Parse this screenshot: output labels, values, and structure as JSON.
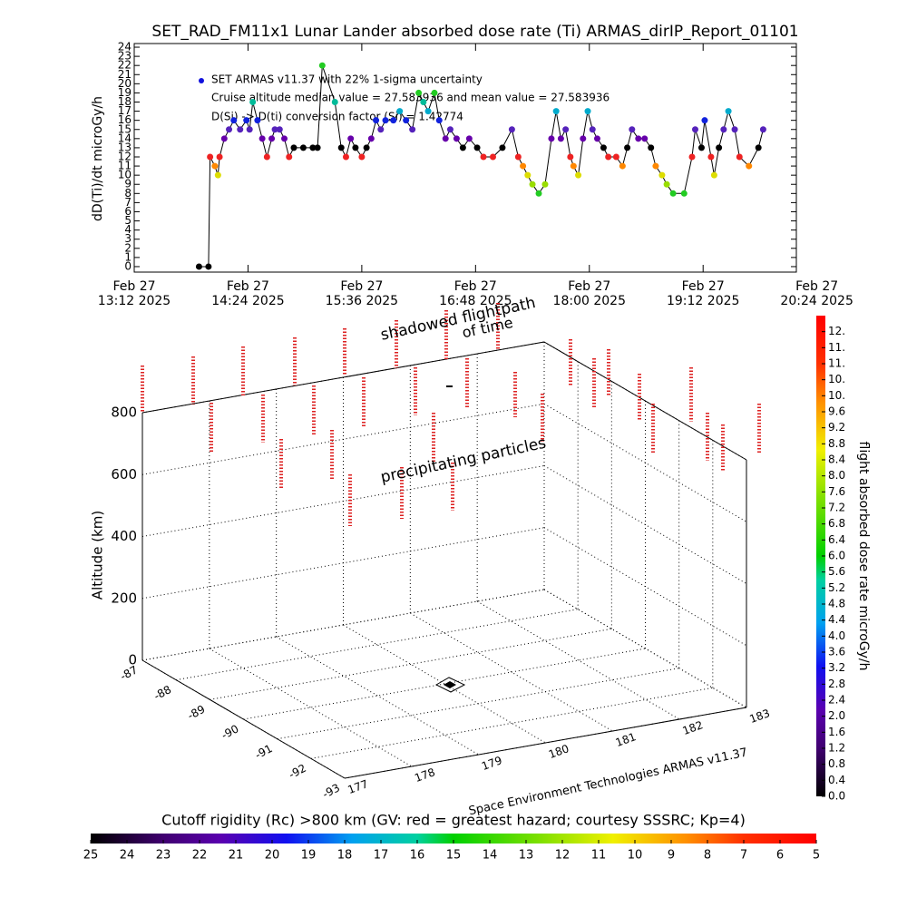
{
  "chart_data": [
    {
      "type": "line",
      "title": "SET_RAD_FM11x1  Lunar Lander absorbed dose rate (Ti) ARMAS_dirIP_Report_01101",
      "ylabel": "dD(Ti)/dt microGy/h",
      "annotations": [
        "Cruise altitude median value = 27.583936 and mean value = 27.583936",
        "D(Si) -> D(ti) conversion factor (Si) = 1.42774"
      ],
      "legend_color": "#1111dd",
      "xlim": [
        "2025-02-27T13:12",
        "2025-02-27T20:11"
      ],
      "xticks": [
        {
          "value": "2025-02-27T13:12",
          "label": "Feb 27\n13:12 2025"
        },
        {
          "value": "2025-02-27T14:24",
          "label": "Feb 27\n14:24 2025"
        },
        {
          "value": "2025-02-27T15:36",
          "label": "Feb 27\n15:36 2025"
        },
        {
          "value": "2025-02-27T16:48",
          "label": "Feb 27\n16:48 2025"
        },
        {
          "value": "2025-02-27T18:00",
          "label": "Feb 27\n18:00 2025"
        },
        {
          "value": "2025-02-27T19:12",
          "label": "Feb 27\n19:12 2025"
        },
        {
          "value": "2025-02-27T20:24",
          "label": "Feb 27\n20:24 2025"
        }
      ],
      "ylim": [
        -0.6,
        24.4
      ],
      "yticks": [
        0,
        1,
        2,
        3,
        4,
        5,
        6,
        7,
        8,
        9,
        10,
        11,
        12,
        13,
        14,
        15,
        16,
        17,
        18,
        19,
        20,
        21,
        22,
        23,
        24
      ],
      "x": [
        "2025-02-27T13:53",
        "2025-02-27T13:59",
        "2025-02-27T14:00",
        "2025-02-27T14:03",
        "2025-02-27T14:05",
        "2025-02-27T14:06",
        "2025-02-27T14:09",
        "2025-02-27T14:12",
        "2025-02-27T14:15",
        "2025-02-27T14:19",
        "2025-02-27T14:23",
        "2025-02-27T14:25",
        "2025-02-27T14:27",
        "2025-02-27T14:30",
        "2025-02-27T14:33",
        "2025-02-27T14:36",
        "2025-02-27T14:39",
        "2025-02-27T14:41",
        "2025-02-27T14:44",
        "2025-02-27T14:47",
        "2025-02-27T14:50",
        "2025-02-27T14:53",
        "2025-02-27T14:59",
        "2025-02-27T15:05",
        "2025-02-27T15:08",
        "2025-02-27T15:11",
        "2025-02-27T15:19",
        "2025-02-27T15:23",
        "2025-02-27T15:26",
        "2025-02-27T15:29",
        "2025-02-27T15:32",
        "2025-02-27T15:36",
        "2025-02-27T15:39",
        "2025-02-27T15:42",
        "2025-02-27T15:45",
        "2025-02-27T15:48",
        "2025-02-27T15:51",
        "2025-02-27T15:56",
        "2025-02-27T16:00",
        "2025-02-27T16:04",
        "2025-02-27T16:08",
        "2025-02-27T16:12",
        "2025-02-27T16:15",
        "2025-02-27T16:18",
        "2025-02-27T16:22",
        "2025-02-27T16:25",
        "2025-02-27T16:29",
        "2025-02-27T16:32",
        "2025-02-27T16:36",
        "2025-02-27T16:40",
        "2025-02-27T16:44",
        "2025-02-27T16:49",
        "2025-02-27T16:53",
        "2025-02-27T16:59",
        "2025-02-27T17:05",
        "2025-02-27T17:11",
        "2025-02-27T17:15",
        "2025-02-27T17:18",
        "2025-02-27T17:21",
        "2025-02-27T17:24",
        "2025-02-27T17:28",
        "2025-02-27T17:32",
        "2025-02-27T17:36",
        "2025-02-27T17:39",
        "2025-02-27T17:42",
        "2025-02-27T17:45",
        "2025-02-27T17:48",
        "2025-02-27T17:50",
        "2025-02-27T17:53",
        "2025-02-27T17:56",
        "2025-02-27T17:59",
        "2025-02-27T18:02",
        "2025-02-27T18:05",
        "2025-02-27T18:09",
        "2025-02-27T18:12",
        "2025-02-27T18:17",
        "2025-02-27T18:21",
        "2025-02-27T18:24",
        "2025-02-27T18:27",
        "2025-02-27T18:31",
        "2025-02-27T18:35",
        "2025-02-27T18:39",
        "2025-02-27T18:42",
        "2025-02-27T18:46",
        "2025-02-27T18:49",
        "2025-02-27T18:53",
        "2025-02-27T19:00",
        "2025-02-27T19:05",
        "2025-02-27T19:07",
        "2025-02-27T19:11",
        "2025-02-27T19:13",
        "2025-02-27T19:17",
        "2025-02-27T19:19",
        "2025-02-27T19:22",
        "2025-02-27T19:25",
        "2025-02-27T19:28",
        "2025-02-27T19:32",
        "2025-02-27T19:35",
        "2025-02-27T19:41",
        "2025-02-27T19:47",
        "2025-02-27T19:50"
      ],
      "series": [
        {
          "name": "SET ARMAS v11.37 with 22% 1-sigma uncertainty",
          "color": "#000000",
          "values": [
            0,
            0,
            12,
            11,
            10,
            12,
            14,
            15,
            16,
            15,
            16,
            15,
            18,
            16,
            14,
            12,
            14,
            15,
            15,
            14,
            12,
            13,
            13,
            13,
            13,
            22,
            18,
            13,
            12,
            14,
            13,
            12,
            13,
            14,
            16,
            15,
            16,
            16,
            17,
            16,
            15,
            19,
            18,
            17,
            19,
            16,
            14,
            15,
            14,
            13,
            14,
            13,
            12,
            12,
            13,
            15,
            12,
            11,
            10,
            9,
            8,
            9,
            14,
            17,
            14,
            15,
            12,
            11,
            10,
            14,
            17,
            15,
            14,
            13,
            12,
            12,
            11,
            13,
            15,
            14,
            14,
            13,
            11,
            10,
            9,
            8,
            8,
            12,
            15,
            13,
            16,
            12,
            10,
            13,
            15,
            17,
            15,
            12,
            11,
            13,
            15
          ],
          "colors": [
            "#000",
            "#000",
            "#e22",
            "#f80",
            "#dd0",
            "#e22",
            "#60a",
            "#52b",
            "#12d",
            "#52b",
            "#12d",
            "#52b",
            "#0b9",
            "#12d",
            "#60a",
            "#e22",
            "#60a",
            "#52b",
            "#52b",
            "#60a",
            "#e22",
            "#000",
            "#000",
            "#000",
            "#000",
            "#2c2",
            "#0b9",
            "#000",
            "#e22",
            "#60a",
            "#000",
            "#e22",
            "#000",
            "#60a",
            "#12d",
            "#52b",
            "#12d",
            "#12d",
            "#0ac",
            "#12d",
            "#52b",
            "#2c2",
            "#0b9",
            "#0ac",
            "#2c2",
            "#12d",
            "#60a",
            "#52b",
            "#60a",
            "#000",
            "#60a",
            "#000",
            "#e22",
            "#e22",
            "#000",
            "#52b",
            "#e22",
            "#f80",
            "#dd0",
            "#9d0",
            "#2c2",
            "#9d0",
            "#60a",
            "#0ac",
            "#60a",
            "#52b",
            "#e22",
            "#f80",
            "#dd0",
            "#60a",
            "#0ac",
            "#52b",
            "#60a",
            "#000",
            "#e22",
            "#e22",
            "#f80",
            "#000",
            "#52b",
            "#60a",
            "#60a",
            "#000",
            "#f80",
            "#dd0",
            "#9d0",
            "#2c2",
            "#2c2",
            "#e22",
            "#52b",
            "#000",
            "#12d",
            "#e22",
            "#dd0",
            "#000",
            "#52b",
            "#0ac",
            "#52b",
            "#e22",
            "#f80",
            "#000",
            "#52b"
          ]
        }
      ]
    },
    {
      "type": "box3d",
      "annotations": [
        "shadowed flightpath",
        "of time",
        "precipitating particles",
        "Space Environment Technologies ARMAS v11.37"
      ],
      "zlabel": "Altitude (km)",
      "zlim": [
        0,
        800
      ],
      "zticks": [
        0,
        200,
        400,
        600,
        800
      ],
      "xlim": [
        -87,
        -93
      ],
      "xticks": [
        -87,
        -88,
        -89,
        -90,
        -91,
        -92,
        -93
      ],
      "ylim": [
        177,
        183
      ],
      "yticks": [
        177,
        178,
        179,
        180,
        181,
        182,
        183
      ],
      "colorbar": {
        "label": "flight absorbed dose rate microGy/h",
        "lim": [
          0,
          12
        ],
        "ticks": [
          {
            "value": 0,
            "label": "0.0"
          },
          0.4,
          0.8,
          1.2,
          1.6,
          {
            "value": 2,
            "label": "2.0"
          },
          2.4,
          2.8,
          3.2,
          3.6,
          {
            "value": 4,
            "label": "4.0"
          },
          4.4,
          4.8,
          5.2,
          5.6,
          {
            "value": 6,
            "label": "6.0"
          },
          6.4,
          6.8,
          7.2,
          7.6,
          {
            "value": 8,
            "label": "8.0"
          },
          8.4,
          8.8,
          9.2,
          9.6,
          {
            "value": 10,
            "label": "10."
          },
          {
            "value": 10.4,
            "label": "10."
          },
          {
            "value": 10.8,
            "label": "11."
          },
          {
            "value": 11.2,
            "label": "11."
          },
          {
            "value": 11.6,
            "label": "12."
          }
        ]
      },
      "cutoff_colorbar": {
        "title": "Cutoff rigidity (Rc) >800 km (GV: red = greatest hazard; courtesy SSSRC; Kp=4)",
        "lim": [
          25,
          5
        ],
        "ticks": [
          25,
          24,
          23,
          22,
          21,
          20,
          19,
          18,
          17,
          16,
          15,
          14,
          13,
          12,
          11,
          10,
          9,
          8,
          7,
          6,
          5
        ]
      }
    }
  ]
}
